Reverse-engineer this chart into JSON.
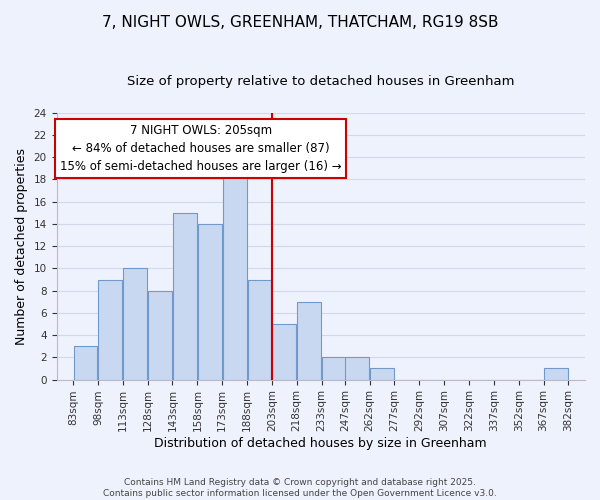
{
  "title": "7, NIGHT OWLS, GREENHAM, THATCHAM, RG19 8SB",
  "subtitle": "Size of property relative to detached houses in Greenham",
  "xlabel": "Distribution of detached houses by size in Greenham",
  "ylabel": "Number of detached properties",
  "bins_left": [
    83,
    98,
    113,
    128,
    143,
    158,
    173,
    188,
    203,
    218,
    233,
    247,
    262,
    277,
    292,
    307,
    322,
    337,
    352,
    367
  ],
  "bin_width": 15,
  "counts": [
    3,
    9,
    10,
    8,
    15,
    14,
    19,
    9,
    5,
    7,
    2,
    2,
    1,
    0,
    0,
    0,
    0,
    0,
    0,
    1
  ],
  "bar_color": "#c8d8f0",
  "bar_edge_color": "#7099cc",
  "reference_line_x": 203,
  "reference_line_color": "#cc0000",
  "annotation_title": "7 NIGHT OWLS: 205sqm",
  "annotation_line1": "← 84% of detached houses are smaller (87)",
  "annotation_line2": "15% of semi-detached houses are larger (16) →",
  "annotation_box_color": "#ffffff",
  "annotation_box_edge": "#cc0000",
  "ylim": [
    0,
    24
  ],
  "yticks": [
    0,
    2,
    4,
    6,
    8,
    10,
    12,
    14,
    16,
    18,
    20,
    22,
    24
  ],
  "tick_labels": [
    "83sqm",
    "98sqm",
    "113sqm",
    "128sqm",
    "143sqm",
    "158sqm",
    "173sqm",
    "188sqm",
    "203sqm",
    "218sqm",
    "233sqm",
    "247sqm",
    "262sqm",
    "277sqm",
    "292sqm",
    "307sqm",
    "322sqm",
    "337sqm",
    "352sqm",
    "367sqm",
    "382sqm"
  ],
  "footer1": "Contains HM Land Registry data © Crown copyright and database right 2025.",
  "footer2": "Contains public sector information licensed under the Open Government Licence v3.0.",
  "bg_color": "#eef2fc",
  "grid_color": "#d0d8ee",
  "title_fontsize": 11,
  "subtitle_fontsize": 9.5,
  "axis_label_fontsize": 9,
  "tick_fontsize": 7.5,
  "annotation_fontsize": 8.5,
  "footer_fontsize": 6.5
}
